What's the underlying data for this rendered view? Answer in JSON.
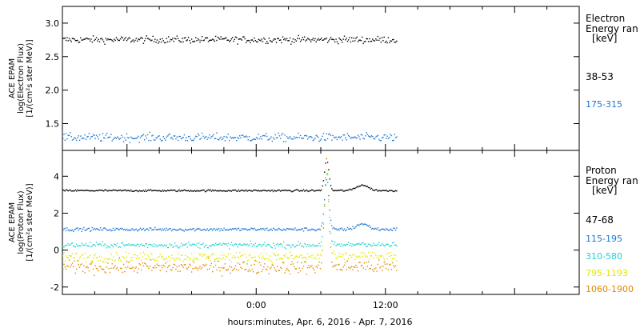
{
  "x_axis_label": "hours:minutes, Apr.  6, 2016 - Apr.  7, 2016",
  "chart_data": [
    {
      "type": "scatter",
      "panel": "electron",
      "ylabel": [
        "ACE EPAM",
        "log(Electron Flux)",
        "[1/(cm²s ster MeV)]"
      ],
      "ylim": [
        1.1,
        3.25
      ],
      "yticks": [
        1.5,
        2.0,
        2.5,
        3.0
      ],
      "ytick_labels": [
        "1.5",
        "2.0",
        "2.5",
        "3.0"
      ],
      "xlim": [
        -18,
        30
      ],
      "xticks": [
        0,
        12
      ],
      "xtick_labels": [
        "0:00",
        "12:00"
      ],
      "data_x_range": [
        -18,
        13
      ],
      "legend_title": [
        "Electron",
        "Energy ran",
        "[keV]"
      ],
      "series": [
        {
          "name": "38-53",
          "color": "#000000",
          "mean": 2.76,
          "noise": 0.05
        },
        {
          "name": "175-315",
          "color": "#1f77d0",
          "mean": 1.3,
          "noise": 0.06
        }
      ]
    },
    {
      "type": "scatter",
      "panel": "proton",
      "ylabel": [
        "ACE EPAM",
        "log(Proton Flux)",
        "[1/(cm²s ster MeV)]"
      ],
      "ylim": [
        -2.4,
        5.4
      ],
      "yticks": [
        -2,
        0,
        2,
        4
      ],
      "ytick_labels": [
        "-2",
        "0",
        "2",
        "4"
      ],
      "xlim": [
        -18,
        30
      ],
      "xticks": [
        0,
        12
      ],
      "xtick_labels": [
        "0:00",
        "12:00"
      ],
      "data_x_range": [
        -18,
        13
      ],
      "legend_title": [
        "Proton",
        "Energy ran",
        "[keV]"
      ],
      "annotations": [
        {
          "type": "spike",
          "x": 6.5,
          "height": 1.7
        },
        {
          "type": "bump",
          "x": 9.8,
          "height": 0.3
        }
      ],
      "series": [
        {
          "name": "47-68",
          "color": "#000000",
          "mean": 3.25,
          "noise": 0.05
        },
        {
          "name": "115-195",
          "color": "#1f77d0",
          "mean": 1.15,
          "noise": 0.09
        },
        {
          "name": "310-580",
          "color": "#22d3d3",
          "mean": 0.3,
          "noise": 0.15
        },
        {
          "name": "795-1193",
          "color": "#e6e600",
          "mean": -0.35,
          "noise": 0.25
        },
        {
          "name": "1060-1900",
          "color": "#e08a00",
          "mean": -0.9,
          "noise": 0.35
        }
      ]
    }
  ]
}
